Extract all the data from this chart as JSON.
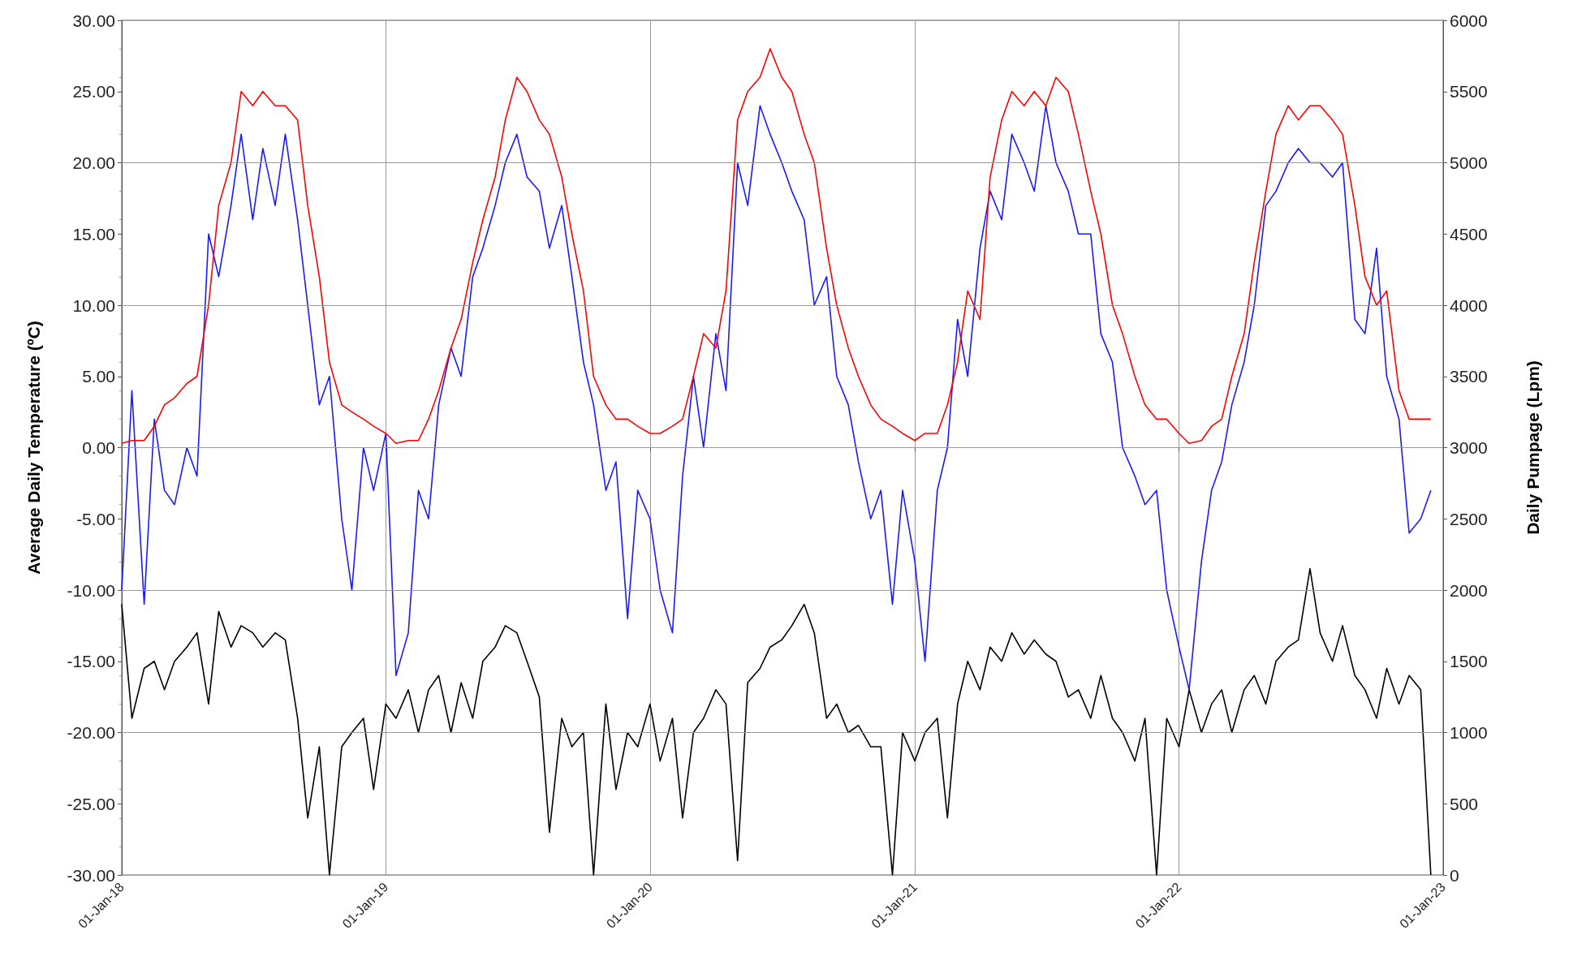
{
  "chart_data": {
    "type": "line",
    "ylabel": "Average Daily Temperature (ºC)",
    "y2label": "Daily Pumpage (Lpm)",
    "x": [
      "2018-01-01",
      "2018-01-15",
      "2018-02-01",
      "2018-02-15",
      "2018-03-01",
      "2018-03-15",
      "2018-04-01",
      "2018-04-15",
      "2018-05-01",
      "2018-05-15",
      "2018-06-01",
      "2018-06-15",
      "2018-07-01",
      "2018-07-15",
      "2018-08-01",
      "2018-08-15",
      "2018-09-01",
      "2018-09-15",
      "2018-10-01",
      "2018-10-15",
      "2018-11-01",
      "2018-11-15",
      "2018-12-01",
      "2018-12-15",
      "2019-01-01",
      "2019-01-15",
      "2019-02-01",
      "2019-02-15",
      "2019-03-01",
      "2019-03-15",
      "2019-04-01",
      "2019-04-15",
      "2019-05-01",
      "2019-05-15",
      "2019-06-01",
      "2019-06-15",
      "2019-07-01",
      "2019-07-15",
      "2019-08-01",
      "2019-08-15",
      "2019-09-01",
      "2019-09-15",
      "2019-10-01",
      "2019-10-15",
      "2019-11-01",
      "2019-11-15",
      "2019-12-01",
      "2019-12-15",
      "2020-01-01",
      "2020-01-15",
      "2020-02-01",
      "2020-02-15",
      "2020-03-01",
      "2020-03-15",
      "2020-04-01",
      "2020-04-15",
      "2020-05-01",
      "2020-05-15",
      "2020-06-01",
      "2020-06-15",
      "2020-07-01",
      "2020-07-15",
      "2020-08-01",
      "2020-08-15",
      "2020-09-01",
      "2020-09-15",
      "2020-10-01",
      "2020-10-15",
      "2020-11-01",
      "2020-11-15",
      "2020-12-01",
      "2020-12-15",
      "2021-01-01",
      "2021-01-15",
      "2021-02-01",
      "2021-02-15",
      "2021-03-01",
      "2021-03-15",
      "2021-04-01",
      "2021-04-15",
      "2021-05-01",
      "2021-05-15",
      "2021-06-01",
      "2021-06-15",
      "2021-07-01",
      "2021-07-15",
      "2021-08-01",
      "2021-08-15",
      "2021-09-01",
      "2021-09-15",
      "2021-10-01",
      "2021-10-15",
      "2021-11-01",
      "2021-11-15",
      "2021-12-01",
      "2021-12-15",
      "2022-01-01",
      "2022-01-15",
      "2022-02-01",
      "2022-02-15",
      "2022-03-01",
      "2022-03-15",
      "2022-04-01",
      "2022-04-15",
      "2022-05-01",
      "2022-05-15",
      "2022-06-01",
      "2022-06-15",
      "2022-07-01",
      "2022-07-15",
      "2022-08-01",
      "2022-08-15",
      "2022-09-01",
      "2022-09-15",
      "2022-10-01",
      "2022-10-15",
      "2022-11-01",
      "2022-11-15",
      "2022-12-01",
      "2022-12-15"
    ],
    "series": [
      {
        "color": "#1a1aff",
        "values": [
          -10,
          4,
          -11,
          2,
          -3,
          -4,
          0,
          -2,
          15,
          12,
          17,
          22,
          16,
          21,
          17,
          22,
          16,
          10,
          3,
          5,
          -5,
          -10,
          0,
          -3,
          1,
          -16,
          -13,
          -3,
          -5,
          3,
          7,
          5,
          12,
          14,
          17,
          20,
          22,
          19,
          18,
          14,
          17,
          12,
          6,
          3,
          -3,
          -1,
          -12,
          -3,
          -5,
          -10,
          -13,
          -2,
          5,
          0,
          8,
          4,
          20,
          17,
          24,
          22,
          20,
          18,
          16,
          10,
          12,
          5,
          3,
          -1,
          -5,
          -3,
          -11,
          -3,
          -8,
          -15,
          -3,
          0,
          9,
          5,
          14,
          18,
          16,
          22,
          20,
          18,
          24,
          20,
          18,
          15,
          15,
          8,
          6,
          0,
          -2,
          -4,
          -3,
          -10,
          -14,
          -17,
          -8,
          -3,
          -1,
          3,
          6,
          10,
          17,
          18,
          20,
          21,
          20,
          20,
          19,
          20,
          9,
          8,
          14,
          5,
          2,
          -6,
          -5,
          -3
        ]
      },
      {
        "color": "#ff0000",
        "values": [
          0.3,
          0.5,
          0.5,
          1.5,
          3,
          3.5,
          4.5,
          5,
          10,
          17,
          20,
          25,
          24,
          25,
          24,
          24,
          23,
          17,
          12,
          6,
          3,
          2.5,
          2,
          1.5,
          1,
          0.3,
          0.5,
          0.5,
          2,
          4,
          7,
          9,
          13,
          16,
          19,
          23,
          26,
          25,
          23,
          22,
          19,
          15,
          11,
          5,
          3,
          2,
          2,
          1.5,
          1,
          1,
          1.5,
          2,
          5,
          8,
          7,
          11,
          23,
          25,
          26,
          28,
          26,
          25,
          22,
          20,
          14,
          10,
          7,
          5,
          3,
          2,
          1.5,
          1,
          0.5,
          1,
          1,
          3,
          6,
          11,
          9,
          19,
          23,
          25,
          24,
          25,
          24,
          26,
          25,
          22,
          18,
          15,
          10,
          8,
          5,
          3,
          2,
          2,
          1,
          0.3,
          0.5,
          1.5,
          2,
          5,
          8,
          13,
          18,
          22,
          24,
          23,
          24,
          24,
          23,
          22,
          17,
          12,
          10,
          11,
          4,
          2,
          2,
          2
        ]
      },
      {
        "color": "#000000",
        "axis": "y2",
        "values": [
          1900,
          1100,
          1450,
          1500,
          1300,
          1500,
          1600,
          1700,
          1200,
          1850,
          1600,
          1750,
          1700,
          1600,
          1700,
          1650,
          1100,
          400,
          900,
          0,
          900,
          1000,
          1100,
          600,
          1200,
          1100,
          1300,
          1000,
          1300,
          1400,
          1000,
          1350,
          1100,
          1500,
          1600,
          1750,
          1700,
          1500,
          1250,
          300,
          1100,
          900,
          1000,
          0,
          1200,
          600,
          1000,
          900,
          1200,
          800,
          1100,
          400,
          1000,
          1100,
          1300,
          1200,
          100,
          1350,
          1450,
          1600,
          1650,
          1750,
          1900,
          1700,
          1100,
          1200,
          1000,
          1050,
          900,
          900,
          0,
          1000,
          800,
          1000,
          1100,
          400,
          1200,
          1500,
          1300,
          1600,
          1500,
          1700,
          1550,
          1650,
          1550,
          1500,
          1250,
          1300,
          1100,
          1400,
          1100,
          1000,
          800,
          1100,
          0,
          1100,
          900,
          1300,
          1000,
          1200,
          1300,
          1000,
          1300,
          1400,
          1200,
          1500,
          1600,
          1650,
          2150,
          1700,
          1500,
          1750,
          1400,
          1300,
          1100,
          1450,
          1200,
          1400,
          1300,
          0
        ]
      }
    ],
    "xlim": [
      "2018-01-01",
      "2023-01-01"
    ],
    "xticks": [
      {
        "value": "2018-01-01",
        "label": "01-Jan-18"
      },
      {
        "value": "2019-01-01",
        "label": "01-Jan-19"
      },
      {
        "value": "2020-01-01",
        "label": "01-Jan-20"
      },
      {
        "value": "2021-01-01",
        "label": "01-Jan-21"
      },
      {
        "value": "2022-01-01",
        "label": "01-Jan-22"
      },
      {
        "value": "2023-01-01",
        "label": "01-Jan-23"
      }
    ],
    "ylim": [
      -30,
      30
    ],
    "yticks": [
      {
        "value": -30,
        "label": "-30.00"
      },
      {
        "value": -25,
        "label": "-25.00"
      },
      {
        "value": -20,
        "label": "-20.00"
      },
      {
        "value": -15,
        "label": "-15.00"
      },
      {
        "value": -10,
        "label": "-10.00"
      },
      {
        "value": -5,
        "label": "-5.00"
      },
      {
        "value": 0,
        "label": "0.00"
      },
      {
        "value": 5,
        "label": "5.00"
      },
      {
        "value": 10,
        "label": "10.00"
      },
      {
        "value": 15,
        "label": "15.00"
      },
      {
        "value": 20,
        "label": "20.00"
      },
      {
        "value": 25,
        "label": "25.00"
      },
      {
        "value": 30,
        "label": "30.00"
      }
    ],
    "y2lim": [
      0,
      6000
    ],
    "y2ticks": [
      0,
      500,
      1000,
      1500,
      2000,
      2500,
      3000,
      3500,
      4000,
      4500,
      5000,
      5500,
      6000
    ],
    "grid": true,
    "marker": "none",
    "line_style": "solid"
  }
}
